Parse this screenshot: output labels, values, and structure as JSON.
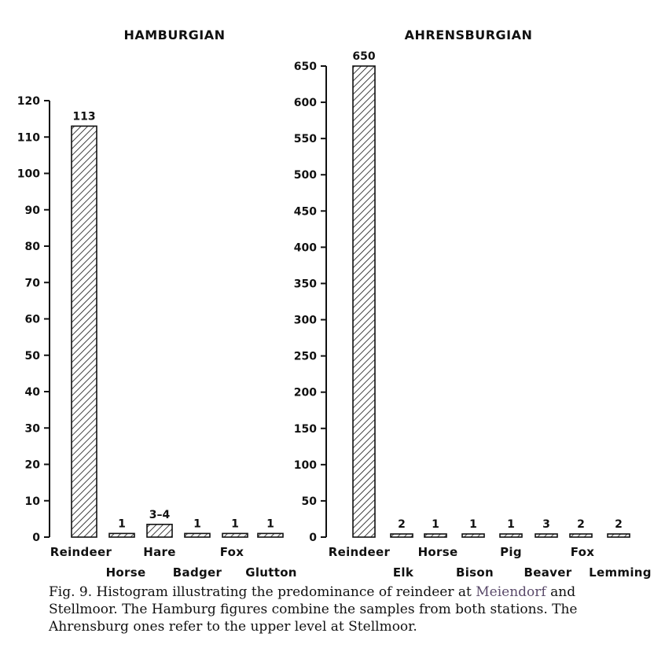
{
  "chart_data": [
    {
      "type": "bar",
      "title": "HAMBURGIAN",
      "categories": [
        "Reindeer",
        "Horse",
        "Hare",
        "Badger",
        "Fox",
        "Glutton"
      ],
      "values": [
        113,
        1,
        3.5,
        1,
        1,
        1
      ],
      "data_labels": [
        "113",
        "1",
        "3–4",
        "1",
        "1",
        "1"
      ],
      "yticks": [
        "0",
        "10",
        "20",
        "30",
        "40",
        "50",
        "60",
        "70",
        "80",
        "90",
        "100",
        "110",
        "120"
      ],
      "ylim": [
        0,
        120
      ],
      "pattern": "diagonal-hatch"
    },
    {
      "type": "bar",
      "title": "AHRENSBURGIAN",
      "categories": [
        "Reindeer",
        "Elk",
        "Horse",
        "Bison",
        "Pig",
        "Beaver",
        "Fox",
        "Lemming"
      ],
      "values": [
        650,
        2,
        1,
        1,
        1,
        3,
        2,
        2
      ],
      "data_labels": [
        "650",
        "2",
        "1",
        "1",
        "1",
        "3",
        "2",
        "2"
      ],
      "yticks": [
        "0",
        "50",
        "100",
        "150",
        "200",
        "250",
        "300",
        "350",
        "400",
        "450",
        "500",
        "550",
        "600",
        "650"
      ],
      "ylim": [
        0,
        650
      ],
      "pattern": "diagonal-hatch"
    }
  ],
  "caption": {
    "prefix": "Fig. 9. Histogram illustrating the predominance of reindeer at ",
    "link": "Meiendorf",
    "suffix": " and Stellmoor. The Hamburg figures combine the samples from both stations. The Ahrensburg ones refer to the upper level at Stellmoor."
  }
}
